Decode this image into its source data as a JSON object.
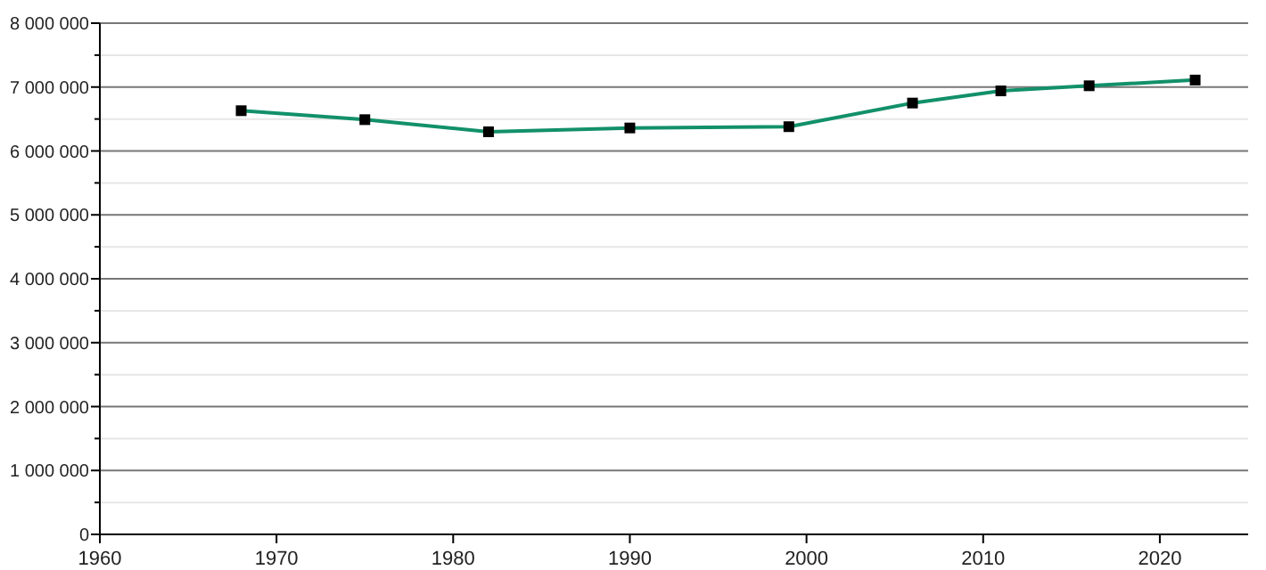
{
  "chart_data": {
    "type": "line",
    "x": [
      1968,
      1975,
      1982,
      1990,
      1999,
      2006,
      2011,
      2016,
      2022
    ],
    "series": [
      {
        "color": "#12906a",
        "values": [
          6630000,
          6490000,
          6300000,
          6360000,
          6380000,
          6750000,
          6940000,
          7020000,
          7110000
        ]
      }
    ],
    "xlim": [
      1960,
      2025
    ],
    "xticks": [
      1960,
      1970,
      1980,
      1990,
      2000,
      2010,
      2020
    ],
    "ylim": [
      0,
      8000000
    ],
    "yticks": [
      {
        "value": 0,
        "label": "0"
      },
      {
        "value": 500000,
        "label": null
      },
      {
        "value": 1000000,
        "label": "1 000 000"
      },
      {
        "value": 1500000,
        "label": null
      },
      {
        "value": 2000000,
        "label": "2 000 000"
      },
      {
        "value": 2500000,
        "label": null
      },
      {
        "value": 3000000,
        "label": "3 000 000"
      },
      {
        "value": 3500000,
        "label": null
      },
      {
        "value": 4000000,
        "label": "4 000 000"
      },
      {
        "value": 4500000,
        "label": null
      },
      {
        "value": 5000000,
        "label": "5 000 000"
      },
      {
        "value": 5500000,
        "label": null
      },
      {
        "value": 6000000,
        "label": "6 000 000"
      },
      {
        "value": 6500000,
        "label": null
      },
      {
        "value": 7000000,
        "label": "7 000 000"
      },
      {
        "value": 7500000,
        "label": null
      },
      {
        "value": 8000000,
        "label": "8 000 000"
      }
    ],
    "grid": true,
    "marker": "square",
    "line_style": "solid"
  }
}
